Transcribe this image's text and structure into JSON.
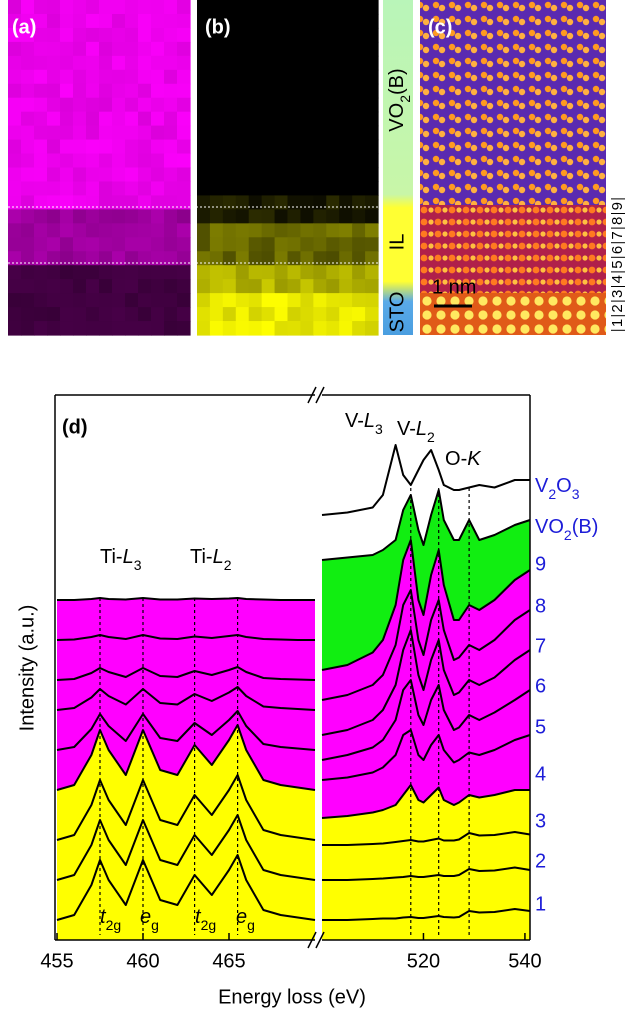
{
  "panels": {
    "labels": [
      "(a)",
      "(b)",
      "(c)",
      "(d)"
    ],
    "layers": [
      "VO2(B)",
      "IL",
      "STO"
    ],
    "scale_bar": "1 nm",
    "layer_numbers": [
      "1",
      "2",
      "3",
      "4",
      "5",
      "6",
      "7",
      "8",
      "9"
    ]
  },
  "chart_data": [
    {
      "type": "line",
      "xlabel": "Energy loss (eV)",
      "ylabel": "Intensity (a.u.)",
      "x": [
        455,
        456,
        457,
        457.5,
        458,
        459,
        460,
        461,
        462,
        463,
        464,
        465,
        465.5,
        466,
        467,
        468,
        469,
        470
      ],
      "xlim": [
        455,
        470
      ],
      "xticks": [
        455,
        460,
        465
      ],
      "ylim": [
        0,
        109
      ],
      "dashed_x": [
        457.5,
        460,
        463,
        465.5
      ],
      "annotations": [
        "Ti-L3",
        "Ti-L2",
        "t2g",
        "eg",
        "t2g",
        "eg"
      ],
      "series": [
        {
          "color": "#ffff00",
          "values": [
            4,
            5,
            11,
            16,
            12,
            7,
            16,
            8,
            7,
            13,
            9,
            14,
            17,
            12,
            6,
            5,
            4.5,
            4
          ]
        },
        {
          "color": "#ffff00",
          "values": [
            12,
            13,
            19,
            24,
            20,
            15,
            24,
            16,
            15,
            21,
            17,
            22,
            25,
            20,
            14,
            13,
            12.5,
            12
          ]
        },
        {
          "color": "#ffff00",
          "values": [
            20,
            21,
            27,
            32,
            28,
            23,
            32,
            24,
            23,
            29,
            25,
            30,
            33,
            28,
            22,
            21,
            20.5,
            20
          ]
        },
        {
          "color": "#ffff00",
          "values": [
            30,
            31,
            37,
            42,
            38,
            33,
            42,
            34,
            33,
            39,
            35,
            40,
            43,
            38,
            32,
            31,
            30.5,
            30
          ]
        },
        {
          "color": "#ff00ff",
          "values": [
            38,
            38.6,
            42.2,
            45.2,
            42.8,
            39.8,
            45.2,
            40.4,
            39.8,
            43.4,
            41,
            44,
            45.8,
            42.8,
            39.2,
            38.6,
            38.3,
            38
          ]
        },
        {
          "color": "#ff00ff",
          "values": [
            46,
            46.4,
            48.5,
            50.2,
            48.8,
            47.1,
            50.2,
            47.4,
            47.1,
            49.2,
            47.8,
            49.5,
            50.6,
            48.8,
            46.7,
            46.4,
            46.2,
            46
          ]
        },
        {
          "color": "#ff00ff",
          "values": [
            52,
            52.2,
            53.4,
            54.4,
            53.6,
            52.6,
            54.4,
            52.8,
            52.6,
            53.8,
            53,
            54,
            54.6,
            53.6,
            52.4,
            52.2,
            52.1,
            52
          ]
        },
        {
          "color": "#ff00ff",
          "values": [
            60,
            60.1,
            60.6,
            61,
            60.6,
            60.2,
            61,
            60.3,
            60.2,
            60.7,
            60.4,
            60.8,
            61,
            60.6,
            60.2,
            60.1,
            60,
            60
          ]
        },
        {
          "color": "#ff00ff",
          "values": [
            68,
            68,
            68.2,
            68.4,
            68.2,
            68.1,
            68.4,
            68.1,
            68.1,
            68.3,
            68.2,
            68.3,
            68.4,
            68.2,
            68.1,
            68,
            68,
            68
          ]
        }
      ]
    },
    {
      "type": "line",
      "x": [
        500,
        505,
        510,
        512,
        514.5,
        516,
        517.5,
        519,
        520,
        521.5,
        523,
        524,
        526,
        527,
        529,
        531,
        534,
        538,
        541
      ],
      "xlim": [
        500,
        541
      ],
      "xticks": [
        520,
        540
      ],
      "ylim": [
        0,
        109
      ],
      "dashed_x": [
        517.5,
        523,
        529
      ],
      "annotations": [
        "V-L3",
        "V-L2",
        "O-K"
      ],
      "label_color": "#1c1cd8",
      "series": [
        {
          "name": "1",
          "color": "#ffff00",
          "values": [
            4,
            4,
            4.2,
            4.3,
            4.3,
            4.5,
            4.6,
            4.4,
            4.4,
            4.6,
            4.8,
            4.6,
            4.5,
            4.6,
            5.8,
            5.5,
            5.6,
            6.2,
            5.8
          ]
        },
        {
          "name": "2",
          "color": "#ffff00",
          "values": [
            12,
            12,
            12.2,
            12.3,
            12.5,
            12.6,
            12.8,
            12.6,
            12.6,
            12.8,
            13,
            12.8,
            12.8,
            13,
            14.2,
            13.8,
            13.9,
            14.5,
            14
          ]
        },
        {
          "name": "3",
          "color": "#ffff00",
          "values": [
            19,
            19,
            19.2,
            19.3,
            19.6,
            19.8,
            20,
            19.7,
            19.7,
            20,
            20.3,
            19.9,
            19.9,
            20.1,
            21.4,
            20.9,
            21,
            21.6,
            21.1
          ]
        },
        {
          "name": "4",
          "color": "#ffff00",
          "values": [
            24.4,
            24.8,
            25.5,
            26,
            27,
            29,
            31,
            28,
            27.5,
            29,
            30.5,
            28,
            27,
            27.5,
            29,
            28.5,
            29,
            30,
            30
          ]
        },
        {
          "name": "5",
          "color": "#ff00ff",
          "values": [
            32,
            32.5,
            33.5,
            34.5,
            37,
            41,
            42,
            37,
            36,
            39,
            41,
            38,
            35.5,
            36,
            37.5,
            37,
            38,
            40,
            41
          ]
        },
        {
          "name": "6",
          "color": "#ff00ff",
          "values": [
            36,
            37,
            38.5,
            40,
            44,
            50,
            52,
            45,
            43,
            48,
            51,
            46,
            42,
            42.5,
            45,
            44,
            45.5,
            48,
            50
          ]
        },
        {
          "name": "7",
          "color": "#ff00ff",
          "values": [
            41,
            42,
            44,
            46,
            51,
            58,
            62,
            53,
            50,
            56,
            60,
            54,
            49,
            49.5,
            52,
            51,
            52.5,
            56,
            58
          ]
        },
        {
          "name": "8",
          "color": "#ff00ff",
          "values": [
            48,
            49,
            51,
            53,
            59,
            67,
            70,
            60,
            57,
            64,
            68,
            62,
            56,
            56.5,
            59,
            58,
            60,
            64,
            66
          ]
        },
        {
          "name": "9",
          "color": "#ff00ff",
          "values": [
            54,
            55,
            57.5,
            60,
            67,
            76,
            80,
            68,
            65,
            73,
            78,
            71,
            64,
            64,
            67,
            66,
            68,
            72,
            74
          ]
        },
        {
          "name": "VO2(B)",
          "color": "#11ee11",
          "values": [
            76,
            76.5,
            77,
            78,
            80,
            86,
            89,
            82,
            79,
            85,
            90,
            84,
            80,
            80,
            84,
            80,
            81,
            83,
            84
          ]
        },
        {
          "name": "V2O3",
          "color": "none",
          "values": [
            85,
            85.5,
            86.5,
            89,
            99,
            93,
            91,
            94,
            96,
            98,
            94,
            91,
            90,
            90,
            90.5,
            91,
            90.5,
            92,
            92
          ]
        }
      ]
    }
  ]
}
